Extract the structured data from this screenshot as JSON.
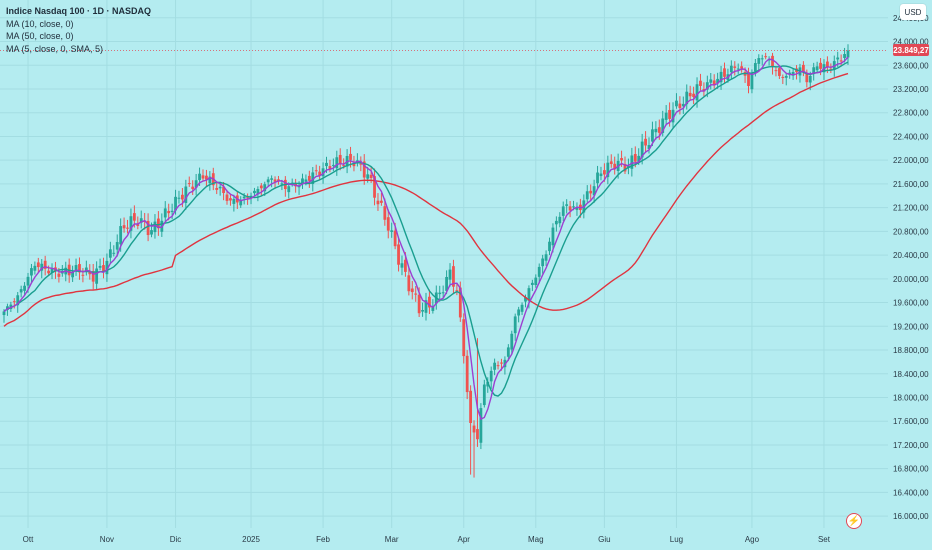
{
  "header": {
    "title": "Indice Nasdaq 100 · 1D · NASDAQ",
    "indicators": [
      "MA (10, close, 0)",
      "MA (50, close, 0)",
      "MA (5, close, 0, SMA, 5)"
    ],
    "currency": "USD"
  },
  "last_price_label": "23.849,27",
  "colors": {
    "background": "#b4ecf0",
    "up": "#26a69a",
    "down": "#ef5350",
    "ma10": "#1a9e8f",
    "ma50": "#e0343f",
    "ma5": "#9c3fd1",
    "price_tag": "#e14855"
  },
  "chart_data": {
    "type": "candlestick",
    "y_axis": {
      "min": 15800,
      "max": 24700,
      "tick_values": [
        16000,
        16400,
        16800,
        17200,
        17600,
        18000,
        18400,
        18800,
        19200,
        19600,
        20000,
        20400,
        20800,
        21200,
        21600,
        22000,
        22400,
        22800,
        23200,
        23600,
        24000,
        24400
      ],
      "tick_labels": [
        "16.000,00",
        "16.400,00",
        "16.800,00",
        "17.200,00",
        "17.600,00",
        "18.000,00",
        "18.400,00",
        "18.800,00",
        "19.200,00",
        "19.600,00",
        "20.000,00",
        "20.400,00",
        "20.800,00",
        "21.200,00",
        "21.600,00",
        "22.000,00",
        "22.400,00",
        "22.800,00",
        "23.200,00",
        "23.600,00",
        "24.000,00",
        "24.400,00"
      ],
      "last_price": 23849.27
    },
    "x_axis": {
      "months": [
        "Ott",
        "Nov",
        "Dic",
        "2025",
        "Feb",
        "Mar",
        "Apr",
        "Mag",
        "Giu",
        "Lug",
        "Ago",
        "Set"
      ],
      "month_start_index": [
        7,
        30,
        50,
        72,
        93,
        113,
        134,
        155,
        175,
        196,
        218,
        239
      ]
    },
    "anchors": [
      [
        0,
        19450
      ],
      [
        4,
        19700
      ],
      [
        9,
        20250
      ],
      [
        15,
        20100
      ],
      [
        22,
        20150
      ],
      [
        26,
        20050
      ],
      [
        30,
        20280
      ],
      [
        35,
        20900
      ],
      [
        39,
        21000
      ],
      [
        43,
        20800
      ],
      [
        48,
        21150
      ],
      [
        53,
        21500
      ],
      [
        58,
        21750
      ],
      [
        63,
        21500
      ],
      [
        66,
        21300
      ],
      [
        70,
        21350
      ],
      [
        74,
        21500
      ],
      [
        78,
        21700
      ],
      [
        82,
        21550
      ],
      [
        86,
        21600
      ],
      [
        90,
        21750
      ],
      [
        96,
        21950
      ],
      [
        102,
        22000
      ],
      [
        106,
        21750
      ],
      [
        109,
        21300
      ],
      [
        112,
        20900
      ],
      [
        115,
        20350
      ],
      [
        118,
        19900
      ],
      [
        121,
        19500
      ],
      [
        124,
        19550
      ],
      [
        127,
        19750
      ],
      [
        130,
        20100
      ],
      [
        132,
        19800
      ],
      [
        134,
        18750
      ],
      [
        136,
        17500
      ],
      [
        138,
        17350
      ],
      [
        140,
        18200
      ],
      [
        143,
        18550
      ],
      [
        146,
        18600
      ],
      [
        149,
        19350
      ],
      [
        152,
        19700
      ],
      [
        155,
        20050
      ],
      [
        158,
        20450
      ],
      [
        161,
        21000
      ],
      [
        164,
        21250
      ],
      [
        167,
        21150
      ],
      [
        170,
        21400
      ],
      [
        174,
        21800
      ],
      [
        178,
        21950
      ],
      [
        182,
        21900
      ],
      [
        186,
        22200
      ],
      [
        190,
        22500
      ],
      [
        194,
        22800
      ],
      [
        198,
        23000
      ],
      [
        202,
        23200
      ],
      [
        206,
        23300
      ],
      [
        210,
        23450
      ],
      [
        214,
        23600
      ],
      [
        217,
        23300
      ],
      [
        220,
        23750
      ],
      [
        223,
        23700
      ],
      [
        226,
        23400
      ],
      [
        229,
        23450
      ],
      [
        232,
        23550
      ],
      [
        234,
        23350
      ],
      [
        237,
        23600
      ],
      [
        240,
        23550
      ],
      [
        243,
        23680
      ],
      [
        246,
        23849
      ]
    ],
    "series": [
      {
        "name": "MA (10, close, 0)",
        "period": 10
      },
      {
        "name": "MA (50, close, 0)",
        "period": 50
      },
      {
        "name": "MA (5, close, 0, SMA, 5)",
        "period": 5
      }
    ]
  }
}
